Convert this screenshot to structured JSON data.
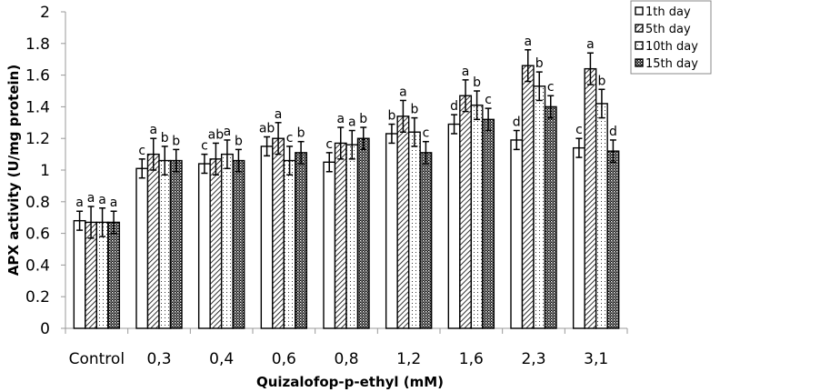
{
  "chart_data": {
    "type": "bar",
    "title": "",
    "xlabel": "Quizalofop-p-ethyl (mM)",
    "ylabel": "APX  activity (U/mg protein)",
    "ylim": [
      0,
      2
    ],
    "yticks": [
      "0",
      "0.2",
      "0.4",
      "0.6",
      "0.8",
      "1",
      "1.2",
      "1.4",
      "1.6",
      "1.8",
      "2"
    ],
    "grid": false,
    "legend_position": "top-right",
    "categories": [
      "Control",
      "0,3",
      "0,4",
      "0,6",
      "0,8",
      "1,2",
      "1,6",
      "2,3",
      "3,1"
    ],
    "series": [
      {
        "name": "1th day",
        "pattern": "plain",
        "values": [
          0.68,
          1.01,
          1.04,
          1.15,
          1.05,
          1.23,
          1.29,
          1.19,
          1.14
        ],
        "errors": [
          0.06,
          0.06,
          0.06,
          0.06,
          0.06,
          0.06,
          0.06,
          0.06,
          0.06
        ],
        "labels": [
          "a",
          "c",
          "c",
          "ab",
          "c",
          "b",
          "d",
          "d",
          "c"
        ]
      },
      {
        "name": "5th day",
        "pattern": "hatch",
        "values": [
          0.67,
          1.1,
          1.07,
          1.2,
          1.17,
          1.34,
          1.47,
          1.66,
          1.64
        ],
        "errors": [
          0.1,
          0.1,
          0.1,
          0.1,
          0.1,
          0.1,
          0.1,
          0.1,
          0.1
        ],
        "labels": [
          "a",
          "a",
          "ab",
          "a",
          "a",
          "a",
          "a",
          "a",
          "a"
        ]
      },
      {
        "name": "10th day",
        "pattern": "dots",
        "values": [
          0.67,
          1.06,
          1.1,
          1.06,
          1.16,
          1.24,
          1.41,
          1.53,
          1.42
        ],
        "errors": [
          0.09,
          0.09,
          0.09,
          0.09,
          0.09,
          0.09,
          0.09,
          0.09,
          0.09
        ],
        "labels": [
          "a",
          "b",
          "a",
          "c",
          "a",
          "b",
          "b",
          "b",
          "b"
        ]
      },
      {
        "name": "15th day",
        "pattern": "checker",
        "values": [
          0.67,
          1.06,
          1.06,
          1.11,
          1.2,
          1.11,
          1.32,
          1.4,
          1.12
        ],
        "errors": [
          0.07,
          0.07,
          0.07,
          0.07,
          0.07,
          0.07,
          0.07,
          0.07,
          0.07
        ],
        "labels": [
          "a",
          "b",
          "b",
          "b",
          "b",
          "c",
          "c",
          "c",
          "d"
        ]
      }
    ]
  }
}
